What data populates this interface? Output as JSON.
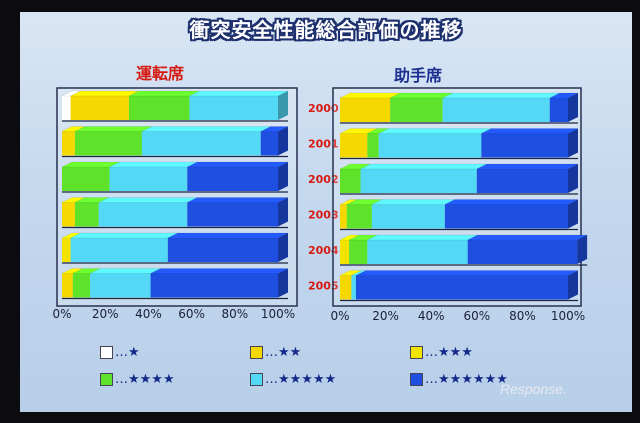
{
  "title": "衝突安全性能総合評価の推移",
  "watermark": "Response.",
  "chart_data": [
    {
      "type": "bar",
      "orientation": "horizontal-stacked",
      "title": "運転席",
      "categories": [
        "2000",
        "2001",
        "2002",
        "2003",
        "2004",
        "2005"
      ],
      "x_ticks": [
        "0%",
        "20%",
        "40%",
        "60%",
        "80%",
        "100%"
      ],
      "xlim": [
        0,
        100
      ],
      "series": [
        {
          "name": "★",
          "values": [
            4,
            0,
            0,
            0,
            0,
            0
          ]
        },
        {
          "name": "★★",
          "values": [
            27,
            6,
            0,
            6,
            0,
            5
          ]
        },
        {
          "name": "★★★",
          "values": [
            0,
            0,
            0,
            0,
            4,
            0
          ]
        },
        {
          "name": "★★★★",
          "values": [
            28,
            31,
            22,
            11,
            0,
            8
          ]
        },
        {
          "name": "★★★★★",
          "values": [
            41,
            55,
            36,
            41,
            45,
            28
          ]
        },
        {
          "name": "★★★★★★",
          "values": [
            0,
            8,
            42,
            42,
            51,
            59
          ]
        }
      ]
    },
    {
      "type": "bar",
      "orientation": "horizontal-stacked",
      "title": "助手席",
      "categories": [
        "2000",
        "2001",
        "2002",
        "2003",
        "2004",
        "2005"
      ],
      "x_ticks": [
        "0%",
        "20%",
        "40%",
        "60%",
        "80%",
        "100%"
      ],
      "xlim": [
        0,
        100
      ],
      "series": [
        {
          "name": "★",
          "values": [
            0,
            0,
            0,
            0,
            0,
            0
          ]
        },
        {
          "name": "★★",
          "values": [
            22,
            12,
            0,
            3,
            0,
            5
          ]
        },
        {
          "name": "★★★",
          "values": [
            0,
            0,
            0,
            0,
            4,
            0
          ]
        },
        {
          "name": "★★★★",
          "values": [
            23,
            5,
            9,
            11,
            8,
            0
          ]
        },
        {
          "name": "★★★★★",
          "values": [
            47,
            45,
            51,
            32,
            44,
            2
          ]
        },
        {
          "name": "★★★★★★",
          "values": [
            8,
            38,
            40,
            54,
            48,
            93
          ]
        }
      ]
    }
  ],
  "legend": [
    {
      "label": "□…★",
      "stars": "…★",
      "color": "#ffffff"
    },
    {
      "label": "…★★",
      "stars": "…★★",
      "color": "#f5d800"
    },
    {
      "label": "…★★★",
      "stars": "…★★★",
      "color": "#f3e300"
    },
    {
      "label": "…★★★★",
      "stars": "…★★★★",
      "color": "#5fe22a"
    },
    {
      "label": "…★★★★★",
      "stars": "…★★★★★",
      "color": "#53d8f5"
    },
    {
      "label": "…★★★★★★",
      "stars": "…★★★★★★",
      "color": "#1e4fe0"
    }
  ],
  "colors": [
    "#ffffff",
    "#f5d800",
    "#f3e300",
    "#5fe22a",
    "#53d8f5",
    "#1e4fe0"
  ]
}
